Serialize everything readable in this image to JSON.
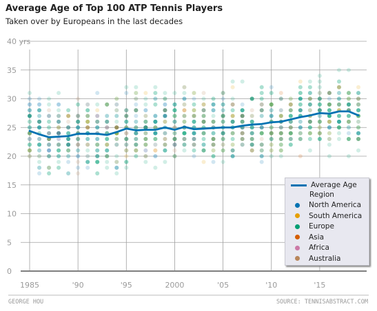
{
  "header": {
    "title": "Average Age of Top 100 ATP Tennis Players",
    "subtitle": "Taken over by Europeans in the last decades"
  },
  "footer": {
    "left": "GEORGE HOU",
    "right": "SOURCE: TENNISABSTRACT.COM"
  },
  "colors": {
    "average_line": "#0072b2",
    "North America": "#0072b2",
    "South America": "#e69f00",
    "Europe": "#009e73",
    "Asia": "#d55e00",
    "Africa": "#cc79a7",
    "Australia": "#b8865a",
    "grid": "#a0a0a0",
    "baseline": "#7f7f7f"
  },
  "chart_data": {
    "type": "scatter",
    "xlim": [
      1985,
      2019
    ],
    "ylim": [
      0,
      40
    ],
    "x_ticks": [
      1985,
      1990,
      1995,
      2000,
      2005,
      2010,
      2015
    ],
    "x_tick_labels": [
      "1985",
      "'90",
      "'95",
      "2000",
      "'05",
      "'10",
      "'15"
    ],
    "y_ticks": [
      0,
      5,
      10,
      15,
      20,
      25,
      30,
      35,
      40
    ],
    "y_tick_labels": [
      "0",
      "5",
      "10",
      "15",
      "20",
      "25",
      "30",
      "35",
      "40 yrs"
    ],
    "grid": true,
    "legend_position": "bottom-right",
    "legend": {
      "line_label": "Average Age",
      "region_title": "Region",
      "regions": [
        "North America",
        "South America",
        "Europe",
        "Asia",
        "Africa",
        "Australia"
      ]
    },
    "average_age": {
      "name": "Average Age",
      "x": [
        1985,
        1986,
        1987,
        1988,
        1989,
        1990,
        1991,
        1992,
        1993,
        1994,
        1995,
        1996,
        1997,
        1998,
        1999,
        2000,
        2001,
        2002,
        2003,
        2004,
        2005,
        2006,
        2007,
        2008,
        2009,
        2010,
        2011,
        2012,
        2013,
        2014,
        2015,
        2016,
        2017,
        2018,
        2019
      ],
      "y": [
        24.4,
        23.8,
        23.3,
        23.4,
        23.5,
        23.9,
        23.9,
        23.9,
        23.7,
        24.2,
        24.8,
        24.5,
        24.6,
        24.6,
        25.0,
        24.6,
        25.1,
        24.7,
        24.8,
        24.9,
        25.0,
        25.0,
        25.3,
        25.5,
        25.6,
        25.9,
        26.0,
        26.4,
        26.8,
        27.1,
        27.5,
        27.4,
        27.8,
        27.8,
        27.1
      ]
    },
    "region_age_ranges": {
      "North America": {
        "min": 17,
        "max": 33
      },
      "South America": {
        "min": 18,
        "max": 34
      },
      "Europe": {
        "min": 17,
        "max": 39
      },
      "Asia": {
        "min": 19,
        "max": 32
      },
      "Africa": {
        "min": 20,
        "max": 32
      },
      "Australia": {
        "min": 17,
        "max": 33
      }
    },
    "players_per_year": 100
  }
}
